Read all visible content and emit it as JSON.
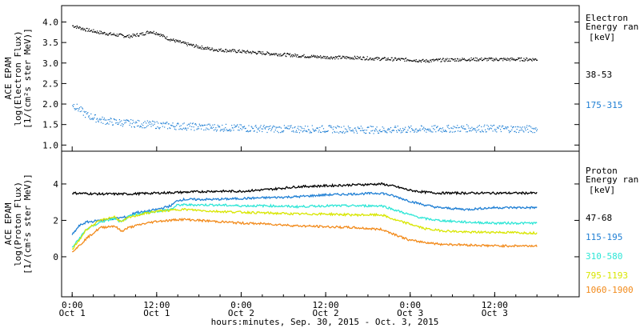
{
  "chart_data": [
    {
      "type": "scatter",
      "title": "",
      "ylabel_lines": [
        "ACE EPAM",
        "log(Electron Flux)",
        "[1/(cm²s ster MeV)]"
      ],
      "ylim": [
        0.85,
        4.4
      ],
      "yticks": [
        "1.0",
        "1.5",
        "2.0",
        "2.5",
        "3.0",
        "3.5",
        "4.0"
      ],
      "legend_title": [
        "Electron",
        "Energy ran",
        "[keV]"
      ],
      "series": [
        {
          "name": "38-53",
          "color": "#000000",
          "x": [
            0,
            2,
            4,
            6,
            8,
            10,
            11,
            12,
            13,
            14,
            16,
            18,
            20,
            24,
            28,
            32,
            36,
            40,
            44,
            48,
            50,
            52,
            56,
            60,
            64,
            66
          ],
          "values": [
            3.92,
            3.82,
            3.75,
            3.7,
            3.66,
            3.72,
            3.78,
            3.74,
            3.65,
            3.58,
            3.48,
            3.4,
            3.34,
            3.29,
            3.24,
            3.19,
            3.15,
            3.14,
            3.11,
            3.09,
            3.06,
            3.08,
            3.1,
            3.1,
            3.1,
            3.1
          ]
        },
        {
          "name": "175-315",
          "color": "#1f7fd4",
          "x": [
            0,
            1,
            2,
            4,
            6,
            10,
            14,
            20,
            24,
            30,
            36,
            40,
            44,
            48,
            52,
            56,
            60,
            64,
            66
          ],
          "values": [
            2.0,
            1.88,
            1.74,
            1.62,
            1.57,
            1.52,
            1.48,
            1.44,
            1.42,
            1.4,
            1.4,
            1.39,
            1.38,
            1.39,
            1.4,
            1.42,
            1.41,
            1.4,
            1.4
          ]
        }
      ]
    },
    {
      "type": "line",
      "title": "",
      "ylabel_lines": [
        "ACE EPAM",
        "log(Proton Flux)",
        "[1/(cm²s ster MeV)]"
      ],
      "ylim": [
        -2.2,
        5.8
      ],
      "yticks": [
        "0",
        "2",
        "4"
      ],
      "legend_title": [
        "Proton",
        "Energy ran",
        "[keV]"
      ],
      "series": [
        {
          "name": "47-68",
          "color": "#000000",
          "x": [
            0,
            4,
            8,
            12,
            16,
            20,
            24,
            28,
            32,
            36,
            40,
            44,
            46,
            48,
            50,
            52,
            56,
            60,
            66
          ],
          "values": [
            3.5,
            3.45,
            3.45,
            3.5,
            3.55,
            3.6,
            3.6,
            3.7,
            3.85,
            3.9,
            3.95,
            4.0,
            3.85,
            3.65,
            3.55,
            3.5,
            3.5,
            3.5,
            3.5
          ]
        },
        {
          "name": "115-195",
          "color": "#1f7fd4",
          "x": [
            0,
            1,
            2,
            4,
            6,
            8,
            9,
            10,
            12,
            14,
            15,
            16,
            20,
            24,
            28,
            32,
            36,
            40,
            44,
            46,
            48,
            50,
            52,
            56,
            60,
            66
          ],
          "values": [
            1.2,
            1.7,
            1.9,
            2.0,
            2.1,
            2.2,
            2.45,
            2.45,
            2.6,
            2.8,
            3.1,
            3.15,
            3.15,
            3.2,
            3.25,
            3.3,
            3.4,
            3.45,
            3.5,
            3.3,
            3.05,
            2.85,
            2.7,
            2.6,
            2.7,
            2.7
          ]
        },
        {
          "name": "310-580",
          "color": "#2ee6d6",
          "x": [
            0,
            1,
            2,
            4,
            6,
            7,
            8,
            10,
            12,
            14,
            15,
            16,
            20,
            24,
            28,
            32,
            36,
            40,
            44,
            46,
            48,
            50,
            52,
            56,
            60,
            66
          ],
          "values": [
            0.5,
            1.0,
            1.5,
            1.9,
            2.1,
            1.9,
            2.2,
            2.4,
            2.5,
            2.6,
            2.85,
            2.85,
            2.85,
            2.8,
            2.8,
            2.75,
            2.8,
            2.8,
            2.8,
            2.55,
            2.3,
            2.1,
            2.0,
            1.9,
            1.85,
            1.85
          ]
        },
        {
          "name": "795-1193",
          "color": "#d8e600",
          "x": [
            0,
            1,
            2,
            4,
            6,
            7,
            8,
            10,
            12,
            14,
            15,
            16,
            20,
            24,
            28,
            32,
            36,
            40,
            44,
            46,
            48,
            50,
            52,
            56,
            60,
            66
          ],
          "values": [
            0.4,
            0.9,
            1.5,
            2.0,
            2.2,
            1.9,
            2.15,
            2.35,
            2.5,
            2.55,
            2.6,
            2.6,
            2.5,
            2.45,
            2.4,
            2.35,
            2.35,
            2.3,
            2.3,
            2.0,
            1.8,
            1.55,
            1.45,
            1.35,
            1.35,
            1.3
          ]
        },
        {
          "name": "1060-1900",
          "color": "#f28a1a",
          "x": [
            0,
            1,
            2,
            4,
            6,
            7,
            8,
            10,
            12,
            14,
            15,
            16,
            20,
            24,
            28,
            32,
            36,
            40,
            44,
            46,
            48,
            50,
            52,
            56,
            60,
            66
          ],
          "values": [
            0.3,
            0.6,
            1.0,
            1.6,
            1.7,
            1.4,
            1.6,
            1.8,
            1.95,
            2.0,
            2.05,
            2.05,
            1.95,
            1.85,
            1.8,
            1.7,
            1.65,
            1.6,
            1.5,
            1.2,
            0.9,
            0.8,
            0.7,
            0.65,
            0.6,
            0.6
          ]
        }
      ]
    }
  ],
  "x_axis": {
    "range_hours": [
      -1.5,
      72
    ],
    "ticks": [
      {
        "hour": 0,
        "time": "0:00",
        "date": "Oct 1"
      },
      {
        "hour": 12,
        "time": "12:00",
        "date": "Oct 1"
      },
      {
        "hour": 24,
        "time": "0:00",
        "date": "Oct 2"
      },
      {
        "hour": 36,
        "time": "12:00",
        "date": "Oct 2"
      },
      {
        "hour": 48,
        "time": "0:00",
        "date": "Oct 3"
      },
      {
        "hour": 60,
        "time": "12:00",
        "date": "Oct 3"
      }
    ],
    "xlabel": "hours:minutes, Sep. 30, 2015 - Oct. 3, 2015"
  }
}
